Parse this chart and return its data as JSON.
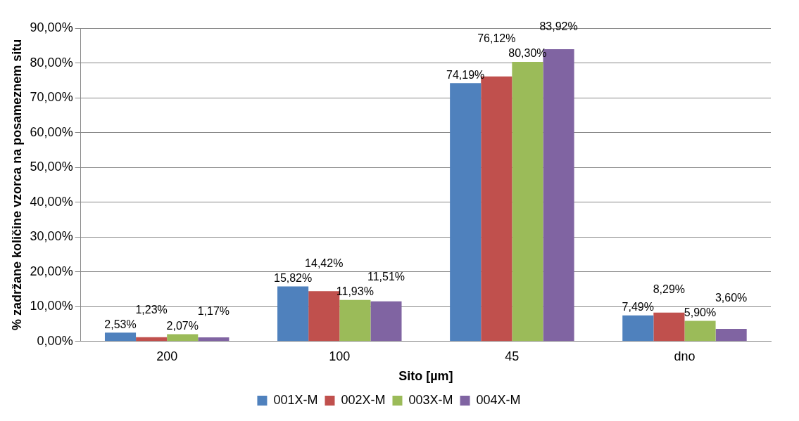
{
  "chart_data": {
    "type": "bar",
    "xlabel": "Sito [µm]",
    "ylabel": "% zadržane količine vzorca na posameznem situ",
    "categories": [
      "200",
      "100",
      "45",
      "dno"
    ],
    "series": [
      {
        "name": "001X-M",
        "color": "#4f81bd",
        "values": [
          2.53,
          15.82,
          74.19,
          7.49
        ],
        "value_labels": [
          "2,53%",
          "15,82%",
          "74,19%",
          "7,49%"
        ]
      },
      {
        "name": "002X-M",
        "color": "#c0504d",
        "values": [
          1.23,
          14.42,
          76.12,
          8.29
        ],
        "value_labels": [
          "1,23%",
          "14,42%",
          "76,12%",
          "8,29%"
        ]
      },
      {
        "name": "003X-M",
        "color": "#9bbb59",
        "values": [
          2.07,
          11.93,
          80.3,
          5.9
        ],
        "value_labels": [
          "2,07%",
          "11,93%",
          "80,30%",
          "5,90%"
        ]
      },
      {
        "name": "004X-M",
        "color": "#8064a2",
        "values": [
          1.17,
          11.51,
          83.92,
          3.6
        ],
        "value_labels": [
          "1,17%",
          "11,51%",
          "83,92%",
          "3,60%"
        ]
      }
    ],
    "ylim": [
      0,
      90
    ],
    "yticks": [
      {
        "value": 0,
        "label": "0,00%"
      },
      {
        "value": 10,
        "label": "10,00%"
      },
      {
        "value": 20,
        "label": "20,00%"
      },
      {
        "value": 30,
        "label": "30,00%"
      },
      {
        "value": 40,
        "label": "40,00%"
      },
      {
        "value": 50,
        "label": "50,00%"
      },
      {
        "value": 60,
        "label": "60,00%"
      },
      {
        "value": 70,
        "label": "70,00%"
      },
      {
        "value": 80,
        "label": "80,00%"
      },
      {
        "value": 90,
        "label": "90,00%"
      }
    ],
    "grid": "y",
    "legend": "bottom"
  }
}
